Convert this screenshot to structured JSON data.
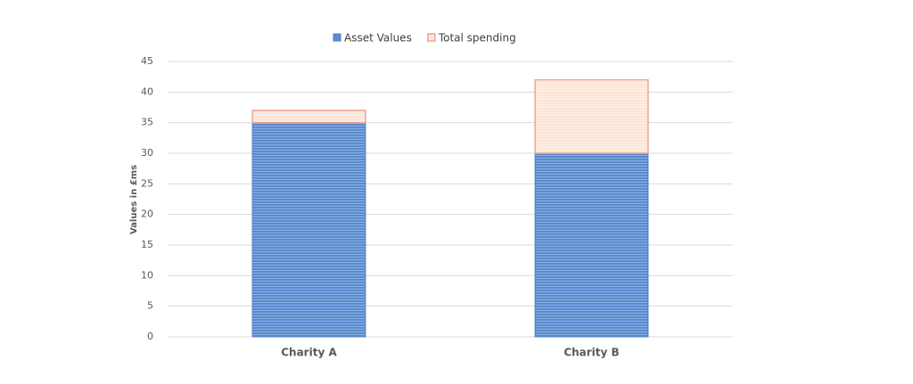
{
  "chart_data": {
    "type": "stacked_bar",
    "categories": [
      "Charity A",
      "Charity B"
    ],
    "series": [
      {
        "name": "Asset Values",
        "color": "#5b8bd0",
        "values": [
          35,
          30
        ]
      },
      {
        "name": "Total spending",
        "color": "#fce6d8",
        "values": [
          2,
          12
        ]
      }
    ],
    "y_label": "Values in £ms",
    "ylim": [
      0,
      45
    ],
    "yticks": [
      0,
      5,
      10,
      15,
      20,
      25,
      30,
      35,
      40,
      45
    ],
    "grid": true,
    "legend": "top"
  }
}
